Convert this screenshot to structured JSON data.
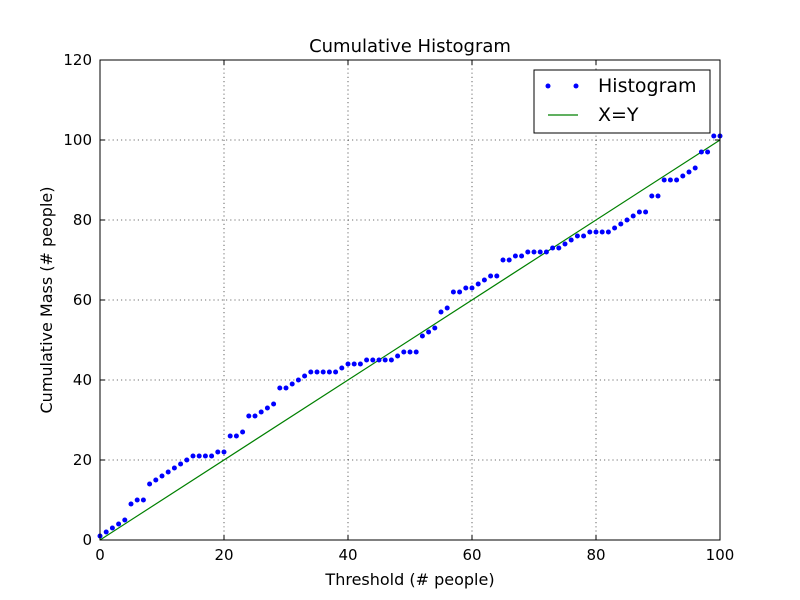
{
  "chart_data": {
    "type": "scatter",
    "title": "Cumulative Histogram",
    "xlabel": "Threshold (# people)",
    "ylabel": "Cumulative Mass (# people)",
    "xlim": [
      0,
      100
    ],
    "ylim": [
      0,
      120
    ],
    "xticks": [
      "0",
      "20",
      "40",
      "60",
      "80",
      "100"
    ],
    "yticks": [
      "0",
      "20",
      "40",
      "60",
      "80",
      "100",
      "120"
    ],
    "grid": true,
    "legend_position": "top-right",
    "series": [
      {
        "name": "Histogram",
        "style": "dots",
        "color": "#0000ff",
        "x": [
          0,
          1,
          2,
          3,
          4,
          5,
          6,
          7,
          8,
          9,
          10,
          11,
          12,
          13,
          14,
          15,
          16,
          17,
          18,
          19,
          20,
          21,
          22,
          23,
          24,
          25,
          26,
          27,
          28,
          29,
          30,
          31,
          32,
          33,
          34,
          35,
          36,
          37,
          38,
          39,
          40,
          41,
          42,
          43,
          44,
          45,
          46,
          47,
          48,
          49,
          50,
          51,
          52,
          53,
          54,
          55,
          56,
          57,
          58,
          59,
          60,
          61,
          62,
          63,
          64,
          65,
          66,
          67,
          68,
          69,
          70,
          71,
          72,
          73,
          74,
          75,
          76,
          77,
          78,
          79,
          80,
          81,
          82,
          83,
          84,
          85,
          86,
          87,
          88,
          89,
          90,
          91,
          92,
          93,
          94,
          95,
          96,
          97,
          98,
          99,
          100
        ],
        "y": [
          1,
          2,
          3,
          4,
          5,
          9,
          10,
          10,
          14,
          15,
          16,
          17,
          18,
          19,
          20,
          21,
          21,
          21,
          21,
          22,
          22,
          26,
          26,
          27,
          31,
          31,
          32,
          33,
          34,
          38,
          38,
          39,
          40,
          41,
          42,
          42,
          42,
          42,
          42,
          43,
          44,
          44,
          44,
          45,
          45,
          45,
          45,
          45,
          46,
          47,
          47,
          47,
          51,
          52,
          53,
          57,
          58,
          62,
          62,
          63,
          63,
          64,
          65,
          66,
          66,
          70,
          70,
          71,
          71,
          72,
          72,
          72,
          72,
          73,
          73,
          74,
          75,
          76,
          76,
          77,
          77,
          77,
          77,
          78,
          79,
          80,
          81,
          82,
          82,
          86,
          86,
          90,
          90,
          90,
          91,
          92,
          93,
          97,
          97,
          101,
          101
        ]
      },
      {
        "name": "X=Y",
        "style": "line",
        "color": "#008000",
        "x": [
          0,
          100
        ],
        "y": [
          0,
          100
        ]
      }
    ]
  }
}
